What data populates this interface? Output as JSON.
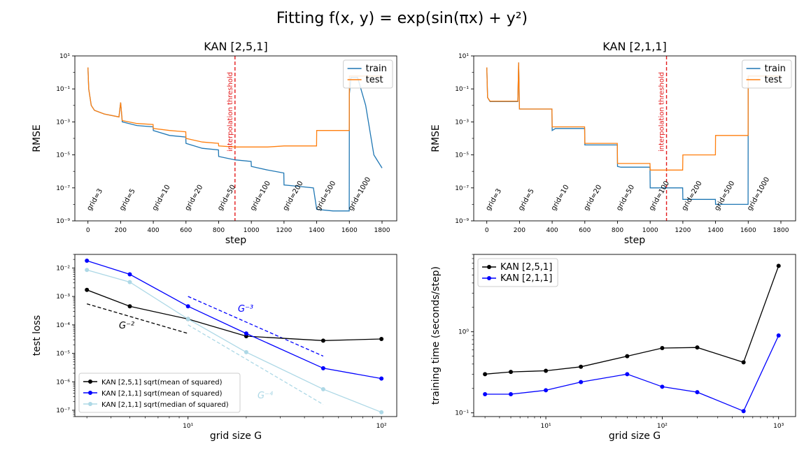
{
  "figure": {
    "title": "Fitting f(x, y) = exp(sin(πx) + y²)"
  },
  "chart_data": [
    {
      "type": "line",
      "title": "KAN [2,5,1]",
      "xlabel": "step",
      "ylabel": "RMSE",
      "yscale": "log",
      "xlim": [
        -80,
        1890
      ],
      "ylim": [
        1e-09,
        10
      ],
      "xticks": [
        0,
        200,
        400,
        600,
        800,
        1000,
        1200,
        1400,
        1600,
        1800
      ],
      "yticks": [
        1e-09,
        1e-07,
        1e-05,
        0.001,
        0.1,
        10
      ],
      "ytick_labels": [
        "10⁻⁹",
        "10⁻⁷",
        "10⁻⁵",
        "10⁻³",
        "10⁻¹",
        "10¹"
      ],
      "legend": {
        "position": "upper right",
        "entries": [
          "train",
          "test"
        ]
      },
      "threshold": {
        "x": 900,
        "label": "interpolation threshold",
        "color": "#e41a1c"
      },
      "grid_labels": [
        "grid=3",
        "grid=5",
        "grid=10",
        "grid=20",
        "grid=50",
        "grid=100",
        "grid=200",
        "grid=500",
        "grid=1000"
      ],
      "series": [
        {
          "name": "train",
          "color": "#1f77b4",
          "x": [
            0,
            5,
            20,
            40,
            100,
            190,
            200,
            210,
            300,
            399,
            400,
            500,
            599,
            600,
            700,
            799,
            800,
            900,
            999,
            1000,
            1100,
            1199,
            1200,
            1300,
            1380,
            1400,
            1500,
            1599,
            1600,
            1610,
            1650,
            1700,
            1750,
            1800
          ],
          "y": [
            2,
            0.1,
            0.01,
            0.005,
            0.003,
            0.002,
            0.015,
            0.001,
            0.0006,
            0.0005,
            0.0003,
            0.00015,
            0.00012,
            5e-05,
            2.5e-05,
            2e-05,
            8e-06,
            5e-06,
            4e-06,
            2e-06,
            1.2e-06,
            8e-07,
            1.5e-07,
            1.2e-07,
            1e-07,
            5e-09,
            4e-09,
            4e-09,
            0.05,
            0.5,
            0.5,
            0.01,
            1e-05,
            1.6e-06
          ]
        },
        {
          "name": "test",
          "color": "#ff7f0e",
          "x": [
            0,
            5,
            20,
            40,
            100,
            190,
            200,
            210,
            300,
            399,
            400,
            500,
            599,
            600,
            700,
            799,
            800,
            900,
            1000,
            1100,
            1200,
            1300,
            1399,
            1400,
            1500,
            1599,
            1600,
            1700,
            1800
          ],
          "y": [
            2,
            0.1,
            0.01,
            0.005,
            0.003,
            0.002,
            0.015,
            0.0012,
            0.0008,
            0.0007,
            0.0004,
            0.0003,
            0.00025,
            0.0001,
            6e-05,
            5e-05,
            3.5e-05,
            3e-05,
            3e-05,
            3e-05,
            3.5e-05,
            3.5e-05,
            3.5e-05,
            0.0003,
            0.0003,
            0.0003,
            0.6,
            0.6,
            0.6
          ]
        }
      ]
    },
    {
      "type": "line",
      "title": "KAN [2,1,1]",
      "xlabel": "step",
      "ylabel": "RMSE",
      "yscale": "log",
      "xlim": [
        -80,
        1890
      ],
      "ylim": [
        1e-09,
        10
      ],
      "xticks": [
        0,
        200,
        400,
        600,
        800,
        1000,
        1200,
        1400,
        1600,
        1800
      ],
      "yticks": [
        1e-09,
        1e-07,
        1e-05,
        0.001,
        0.1,
        10
      ],
      "ytick_labels": [
        "10⁻⁹",
        "10⁻⁷",
        "10⁻⁵",
        "10⁻³",
        "10⁻¹",
        "10¹"
      ],
      "legend": {
        "position": "upper right",
        "entries": [
          "train",
          "test"
        ]
      },
      "threshold": {
        "x": 1100,
        "label": "interpolation threshold",
        "color": "#e41a1c"
      },
      "grid_labels": [
        "grid=3",
        "grid=5",
        "grid=10",
        "grid=20",
        "grid=50",
        "grid=100",
        "grid=200",
        "grid=500",
        "grid=1000"
      ],
      "series": [
        {
          "name": "train",
          "color": "#1f77b4",
          "x": [
            0,
            5,
            20,
            190,
            195,
            200,
            210,
            399,
            400,
            420,
            599,
            600,
            620,
            799,
            800,
            820,
            999,
            1000,
            1100,
            1199,
            1200,
            1399,
            1400,
            1599,
            1600,
            1700,
            1800
          ],
          "y": [
            2,
            0.03,
            0.017,
            0.017,
            4,
            0.006,
            0.006,
            0.006,
            0.0003,
            0.0004,
            0.0004,
            4e-05,
            4e-05,
            4e-05,
            2e-06,
            1.8e-06,
            1.8e-06,
            1e-07,
            1e-07,
            1e-07,
            2e-08,
            2e-08,
            1e-08,
            1e-08,
            0.6,
            0.6,
            0.6
          ]
        },
        {
          "name": "test",
          "color": "#ff7f0e",
          "x": [
            0,
            5,
            20,
            190,
            195,
            200,
            210,
            399,
            400,
            420,
            599,
            600,
            620,
            799,
            800,
            820,
            999,
            1000,
            1199,
            1200,
            1399,
            1400,
            1599,
            1600,
            1700,
            1800
          ],
          "y": [
            2,
            0.03,
            0.018,
            0.018,
            4,
            0.006,
            0.006,
            0.006,
            0.0005,
            0.0005,
            0.0005,
            5e-05,
            5e-05,
            5e-05,
            3e-06,
            3e-06,
            3e-06,
            1.2e-06,
            1.2e-06,
            1e-05,
            1e-05,
            0.00015,
            0.00015,
            0.6,
            0.6,
            0.6
          ]
        }
      ]
    },
    {
      "type": "line",
      "title": "",
      "xlabel": "grid size G",
      "ylabel": "test loss",
      "xscale": "log",
      "yscale": "log",
      "xlim": [
        2.6,
        120
      ],
      "ylim": [
        6e-08,
        0.03
      ],
      "xticks": [
        10,
        100
      ],
      "xtick_labels": [
        "10¹",
        "10²"
      ],
      "yticks": [
        1e-07,
        1e-06,
        1e-05,
        0.0001,
        0.001,
        0.01
      ],
      "ytick_labels": [
        "10⁻⁷",
        "10⁻⁶",
        "10⁻⁵",
        "10⁻⁴",
        "10⁻³",
        "10⁻²"
      ],
      "legend": {
        "position": "lower left",
        "entries": [
          "KAN [2,5,1] sqrt(mean of squared)",
          "KAN [2,1,1] sqrt(mean of squared)",
          "KAN [2,1,1] sqrt(median of squared)"
        ]
      },
      "series": [
        {
          "name": "KAN [2,5,1] sqrt(mean of squared)",
          "color": "#000000",
          "x": [
            3,
            5,
            10,
            20,
            50,
            100
          ],
          "y": [
            0.0017,
            0.00045,
            0.00016,
            4e-05,
            2.8e-05,
            3.2e-05
          ]
        },
        {
          "name": "KAN [2,1,1] sqrt(mean of squared)",
          "color": "#0000ff",
          "x": [
            3,
            5,
            10,
            20,
            50,
            100
          ],
          "y": [
            0.018,
            0.006,
            0.00045,
            5e-05,
            3e-06,
            1.3e-06
          ]
        },
        {
          "name": "KAN [2,1,1] sqrt(median of squared)",
          "color": "#add8e6",
          "x": [
            3,
            5,
            10,
            20,
            50,
            100
          ],
          "y": [
            0.0085,
            0.0032,
            0.00016,
            1.1e-05,
            5.5e-07,
            8.5e-08
          ]
        }
      ],
      "reference_lines": [
        {
          "label": "G⁻²",
          "color": "#000000",
          "x": [
            3,
            10
          ],
          "y": [
            0.00055,
            5e-05
          ]
        },
        {
          "label": "G⁻³",
          "color": "#0000ff",
          "x": [
            10,
            50
          ],
          "y": [
            0.001,
            8e-06
          ]
        },
        {
          "label": "G⁻⁴",
          "color": "#add8e6",
          "x": [
            10,
            50
          ],
          "y": [
            0.0001,
            1.6e-07
          ]
        }
      ]
    },
    {
      "type": "line",
      "title": "",
      "xlabel": "grid size G",
      "ylabel": "training time (seconds/step)",
      "xscale": "log",
      "yscale": "log",
      "xlim": [
        2.4,
        1400
      ],
      "ylim": [
        0.09,
        9
      ],
      "xticks": [
        10,
        100,
        1000
      ],
      "xtick_labels": [
        "10¹",
        "10²",
        "10³"
      ],
      "yticks": [
        0.1,
        1
      ],
      "ytick_labels": [
        "10⁻¹",
        "10⁰"
      ],
      "legend": {
        "position": "upper left",
        "entries": [
          "KAN [2,5,1]",
          "KAN [2,1,1]"
        ]
      },
      "series": [
        {
          "name": "KAN [2,5,1]",
          "color": "#000000",
          "x": [
            3,
            5,
            10,
            20,
            50,
            100,
            200,
            500,
            1000
          ],
          "y": [
            0.3,
            0.32,
            0.33,
            0.37,
            0.5,
            0.63,
            0.64,
            0.42,
            6.5
          ]
        },
        {
          "name": "KAN [2,1,1]",
          "color": "#0000ff",
          "x": [
            3,
            5,
            10,
            20,
            50,
            100,
            200,
            500,
            1000
          ],
          "y": [
            0.17,
            0.17,
            0.19,
            0.24,
            0.3,
            0.21,
            0.18,
            0.105,
            0.9
          ]
        }
      ]
    }
  ]
}
